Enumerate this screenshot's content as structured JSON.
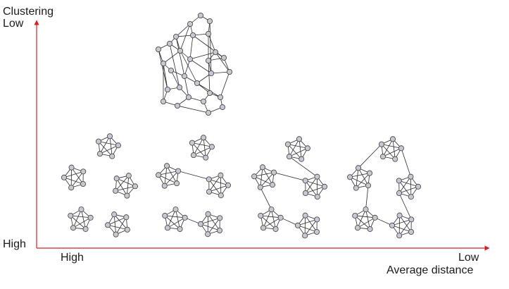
{
  "y_axis": {
    "title": "Clustering",
    "top_label": "Low",
    "bottom_label": "High"
  },
  "x_axis": {
    "title": "Average distance",
    "left_label": "High",
    "right_label": "Low"
  },
  "colors": {
    "axis": "#d62020",
    "node_fill": "#c8c8d2",
    "node_stroke": "#3c3c3c",
    "edge": "#2a2a2a",
    "text": "#1a1a1a"
  },
  "networks": [
    {
      "name": "random-network",
      "description_shown": false
    },
    {
      "name": "disconnected-clusters"
    },
    {
      "name": "pair-bridged-clusters"
    },
    {
      "name": "ring-connected-clusters"
    },
    {
      "name": "ring-connected-clusters-with-shortcut"
    }
  ]
}
